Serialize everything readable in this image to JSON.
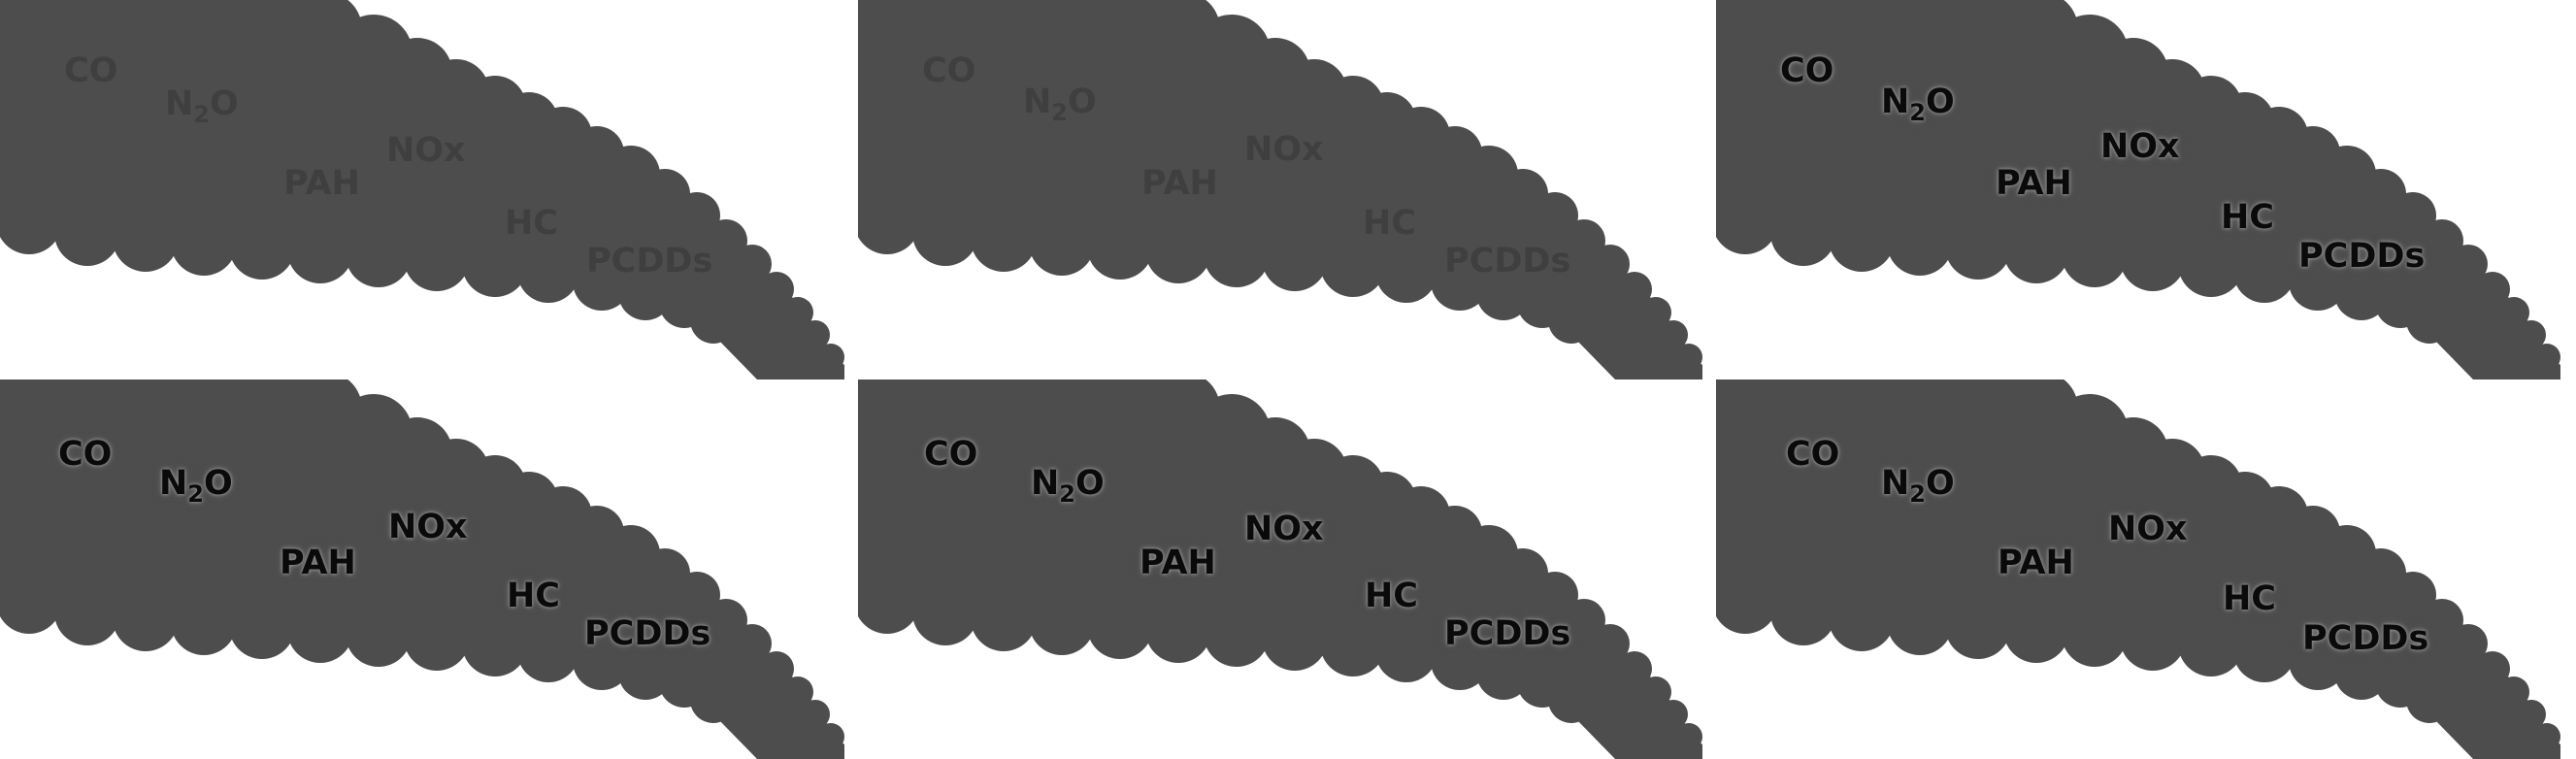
{
  "colors": {
    "smoke": "#4d4d4d",
    "background": "#ffffff",
    "label_faded": "#3f3f3f",
    "label_dark": "#0a0a0a"
  },
  "panels": [
    {
      "id": "top-left",
      "style": "faded",
      "labels": {
        "co": "CO",
        "n2o_n": "N",
        "n2o_sub": "2",
        "n2o_o": "O",
        "pah": "PAH",
        "nox": "NOx",
        "hc": "HC",
        "pcdds": "PCDDs"
      }
    },
    {
      "id": "top-middle",
      "style": "faded",
      "labels": {
        "co": "CO",
        "n2o_n": "N",
        "n2o_sub": "2",
        "n2o_o": "O",
        "pah": "PAH",
        "nox": "NOx",
        "hc": "HC",
        "pcdds": "PCDDs"
      }
    },
    {
      "id": "top-right",
      "style": "glow",
      "labels": {
        "co": "CO",
        "n2o_n": "N",
        "n2o_sub": "2",
        "n2o_o": "O",
        "pah": "PAH",
        "nox": "NOx",
        "hc": "HC",
        "pcdds": "PCDDs"
      }
    },
    {
      "id": "bottom-left",
      "style": "glow",
      "labels": {
        "co": "CO",
        "n2o_n": "N",
        "n2o_sub": "2",
        "n2o_o": "O",
        "pah": "PAH",
        "nox": "NOx",
        "hc": "HC",
        "pcdds": "PCDDs"
      }
    },
    {
      "id": "bottom-middle",
      "style": "glow",
      "labels": {
        "co": "CO",
        "n2o_n": "N",
        "n2o_sub": "2",
        "n2o_o": "O",
        "pah": "PAH",
        "nox": "NOx",
        "hc": "HC",
        "pcdds": "PCDDs"
      }
    },
    {
      "id": "bottom-right",
      "style": "glow",
      "labels": {
        "co": "CO",
        "n2o_n": "N",
        "n2o_sub": "2",
        "n2o_o": "O",
        "pah": "PAH",
        "nox": "NOx",
        "hc": "HC",
        "pcdds": "PCDDs"
      }
    }
  ]
}
